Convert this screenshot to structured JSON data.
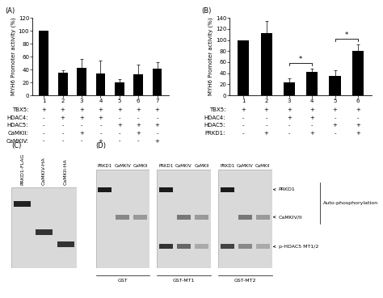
{
  "chart_data": [
    {
      "type": "bar",
      "title": "(A)",
      "y_label": "MYH6 Promoter activity (%)",
      "categories": [
        "1",
        "2",
        "3",
        "4",
        "5",
        "6",
        "7"
      ],
      "values": [
        100,
        35,
        43,
        34,
        20,
        33,
        42
      ],
      "errors": [
        0,
        4,
        13,
        20,
        5,
        15,
        10
      ],
      "color": "#000000",
      "ylim": [
        0,
        120
      ],
      "yticks": [
        0,
        20,
        40,
        60,
        80,
        100,
        120
      ],
      "conditions": [
        {
          "name": "TBX5:",
          "values": [
            "+",
            "+",
            "+",
            "+",
            "+",
            "+",
            "+"
          ]
        },
        {
          "name": "HDAC4:",
          "values": [
            "-",
            "+",
            "+",
            "+",
            "-",
            "-",
            "-"
          ]
        },
        {
          "name": "HDAC5:",
          "values": [
            "-",
            "-",
            "-",
            "-",
            "+",
            "+",
            "+"
          ]
        },
        {
          "name": "CaMKII:",
          "values": [
            "-",
            "-",
            "+",
            "-",
            "-",
            "+",
            "-"
          ]
        },
        {
          "name": "CaMKIV:",
          "values": [
            "-",
            "-",
            "-",
            "+",
            "-",
            "-",
            "+"
          ]
        }
      ]
    },
    {
      "type": "bar",
      "title": "(B)",
      "y_label": "MYH6 Promoter activity (%)",
      "categories": [
        "1",
        "2",
        "3",
        "4",
        "5",
        "6"
      ],
      "values": [
        100,
        112,
        23,
        42,
        35,
        80
      ],
      "errors": [
        0,
        22,
        8,
        6,
        10,
        12
      ],
      "color": "#000000",
      "ylim": [
        0,
        140
      ],
      "yticks": [
        0,
        20,
        40,
        60,
        80,
        100,
        120,
        140
      ],
      "conditions": [
        {
          "name": "TBX5:",
          "values": [
            "+",
            "+",
            "+",
            "+",
            "+",
            "+"
          ]
        },
        {
          "name": "HDAC4:",
          "values": [
            "-",
            "-",
            "+",
            "+",
            "-",
            "-"
          ]
        },
        {
          "name": "HDAC5:",
          "values": [
            "-",
            "-",
            "-",
            "-",
            "+",
            "+"
          ]
        },
        {
          "name": "PRKD1:",
          "values": [
            "-",
            "+",
            "-",
            "+",
            "-",
            "+"
          ]
        }
      ],
      "significance": [
        {
          "from": "3",
          "to": "4",
          "text": "*"
        },
        {
          "from": "5",
          "to": "6",
          "text": "*"
        }
      ]
    }
  ],
  "blots": {
    "C": {
      "title": "(C)",
      "lanes": [
        "PRKD1-FLAG",
        "CaMKIV-HA",
        "CaMKII-HA"
      ]
    },
    "D": {
      "title": "(D)",
      "gels": [
        {
          "name": "GST",
          "lanes": [
            "PRKD1",
            "CaMKIV",
            "CaMKII"
          ]
        },
        {
          "name": "GST-MT1",
          "lanes": [
            "PRKD1",
            "CaMKIV",
            "CaMKII"
          ]
        },
        {
          "name": "GST-MT2",
          "lanes": [
            "PRKD1",
            "CaMKIV",
            "CaMKII"
          ]
        }
      ],
      "bands": [
        "PRKD1",
        "CaMKIV/II",
        "p-HDAC5 MT1/2"
      ],
      "group_label": "Auto-phosphorylation"
    }
  }
}
